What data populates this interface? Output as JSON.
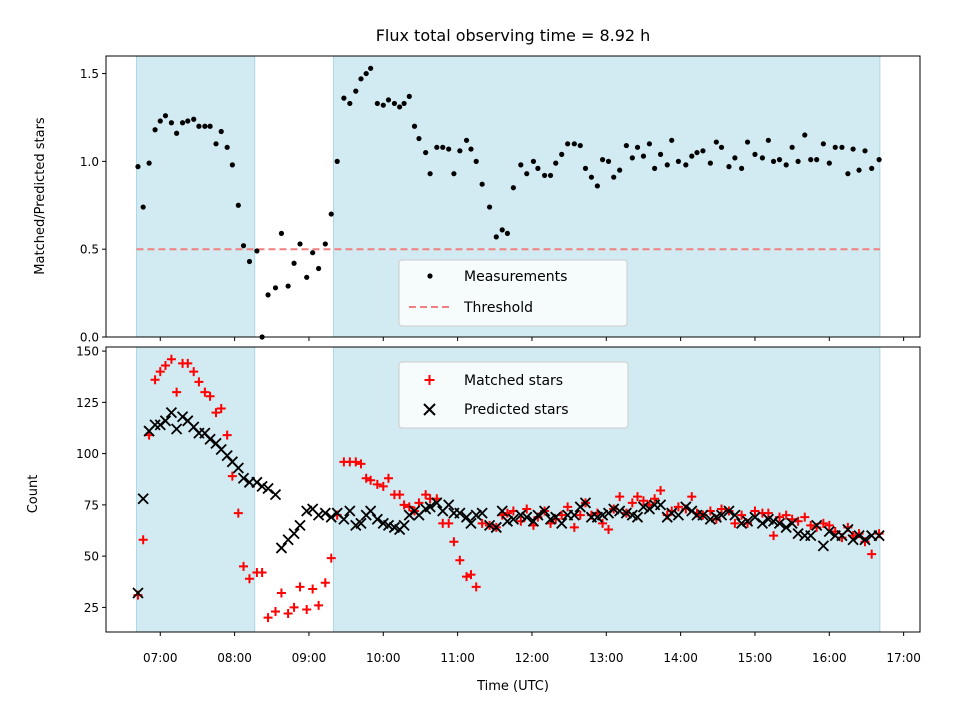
{
  "colors": {
    "band": "#add8e6",
    "measurement": "#000000",
    "threshold": "#f08080",
    "matched": "#ff0000",
    "predicted": "#000000"
  },
  "chart_data": [
    {
      "type": "scatter",
      "title": "Flux total observing time = 8.92 h",
      "xlabel": "",
      "ylabel": "Matched/Predicted stars",
      "xlim": [
        6.27,
        17.22
      ],
      "ylim": [
        0,
        1.6
      ],
      "yticks": [
        0.0,
        0.5,
        1.0,
        1.5
      ],
      "ytick_labels": [
        "0.0",
        "0.5",
        "1.0",
        "1.5"
      ],
      "shaded_ranges": [
        [
          6.68,
          8.27
        ],
        [
          9.33,
          16.68
        ]
      ],
      "threshold": 0.5,
      "legend": {
        "position": "lower center",
        "entries": [
          "Measurements",
          "Threshold"
        ]
      },
      "series": [
        {
          "name": "Measurements",
          "marker": "dot",
          "x": [
            6.7,
            6.77,
            6.85,
            6.93,
            7.0,
            7.07,
            7.15,
            7.22,
            7.3,
            7.37,
            7.45,
            7.52,
            7.6,
            7.67,
            7.75,
            7.82,
            7.9,
            7.97,
            8.05,
            8.12,
            8.2,
            8.3,
            8.37,
            8.45,
            8.55,
            8.63,
            8.72,
            8.8,
            8.88,
            8.97,
            9.05,
            9.13,
            9.22,
            9.3,
            9.38,
            9.47,
            9.55,
            9.63,
            9.7,
            9.77,
            9.83,
            9.92,
            10.0,
            10.07,
            10.15,
            10.22,
            10.28,
            10.35,
            10.42,
            10.48,
            10.57,
            10.63,
            10.72,
            10.8,
            10.88,
            10.95,
            11.03,
            11.12,
            11.18,
            11.25,
            11.33,
            11.43,
            11.52,
            11.6,
            11.67,
            11.75,
            11.85,
            11.93,
            12.02,
            12.08,
            12.17,
            12.25,
            12.32,
            12.4,
            12.48,
            12.57,
            12.65,
            12.72,
            12.8,
            12.88,
            12.95,
            13.03,
            13.1,
            13.18,
            13.27,
            13.35,
            13.42,
            13.5,
            13.58,
            13.65,
            13.73,
            13.82,
            13.88,
            13.97,
            14.07,
            14.15,
            14.22,
            14.3,
            14.4,
            14.48,
            14.55,
            14.65,
            14.73,
            14.82,
            14.9,
            15.0,
            15.1,
            15.18,
            15.25,
            15.33,
            15.42,
            15.5,
            15.58,
            15.67,
            15.75,
            15.83,
            15.92,
            16.0,
            16.08,
            16.17,
            16.25,
            16.32,
            16.4,
            16.48,
            16.57,
            16.67
          ],
          "y": [
            0.97,
            0.74,
            0.99,
            1.18,
            1.23,
            1.26,
            1.22,
            1.16,
            1.22,
            1.23,
            1.24,
            1.2,
            1.2,
            1.2,
            1.1,
            1.17,
            1.08,
            0.98,
            0.75,
            0.52,
            0.43,
            0.49,
            0.0,
            0.24,
            0.28,
            0.59,
            0.29,
            0.42,
            0.53,
            0.34,
            0.48,
            0.39,
            0.53,
            0.7,
            1.0,
            1.36,
            1.33,
            1.4,
            1.47,
            1.5,
            1.53,
            1.33,
            1.32,
            1.35,
            1.33,
            1.31,
            1.33,
            1.37,
            1.2,
            1.13,
            1.05,
            0.93,
            1.08,
            1.08,
            1.07,
            0.93,
            1.06,
            1.12,
            1.07,
            1.0,
            0.87,
            0.74,
            0.57,
            0.61,
            0.59,
            0.85,
            0.98,
            0.93,
            1.0,
            0.96,
            0.92,
            0.92,
            0.99,
            1.04,
            1.1,
            1.1,
            1.09,
            0.96,
            0.91,
            0.86,
            1.01,
            1.0,
            0.91,
            0.95,
            1.09,
            1.02,
            1.08,
            1.03,
            1.1,
            0.96,
            1.04,
            0.98,
            1.12,
            1.0,
            0.98,
            1.03,
            1.05,
            1.06,
            0.99,
            1.11,
            1.08,
            0.97,
            1.02,
            0.96,
            1.11,
            1.04,
            1.02,
            1.12,
            1.0,
            1.01,
            0.98,
            1.08,
            1.0,
            1.15,
            1.01,
            1.01,
            1.1,
            0.99,
            1.08,
            1.08,
            0.93,
            1.07,
            0.95,
            1.06,
            0.96,
            1.01
          ]
        },
        {
          "name": "Threshold",
          "style": "dashed",
          "x": [
            6.68,
            16.68
          ],
          "y": [
            0.5,
            0.5
          ]
        }
      ]
    },
    {
      "type": "scatter",
      "title": "",
      "xlabel": "Time (UTC)",
      "ylabel": "Count",
      "xlim": [
        6.27,
        17.22
      ],
      "ylim": [
        13,
        152
      ],
      "yticks": [
        25,
        50,
        75,
        100,
        125,
        150
      ],
      "ytick_labels": [
        "25",
        "50",
        "75",
        "100",
        "125",
        "150"
      ],
      "xticks": [
        7,
        8,
        9,
        10,
        11,
        12,
        13,
        14,
        15,
        16,
        17
      ],
      "xtick_labels": [
        "07:00",
        "08:00",
        "09:00",
        "10:00",
        "11:00",
        "12:00",
        "13:00",
        "14:00",
        "15:00",
        "16:00",
        "17:00"
      ],
      "shaded_ranges": [
        [
          6.68,
          8.27
        ],
        [
          9.33,
          16.68
        ]
      ],
      "legend": {
        "position": "upper center",
        "entries": [
          "Matched stars",
          "Predicted stars"
        ]
      },
      "series": [
        {
          "name": "Matched stars",
          "marker": "plus",
          "x": [
            6.7,
            6.77,
            6.85,
            6.93,
            7.0,
            7.07,
            7.15,
            7.22,
            7.3,
            7.37,
            7.45,
            7.52,
            7.6,
            7.67,
            7.75,
            7.82,
            7.9,
            7.97,
            8.05,
            8.12,
            8.2,
            8.3,
            8.37,
            8.45,
            8.55,
            8.63,
            8.72,
            8.8,
            8.88,
            8.97,
            9.05,
            9.13,
            9.22,
            9.3,
            9.38,
            9.47,
            9.55,
            9.63,
            9.7,
            9.77,
            9.83,
            9.92,
            10.0,
            10.07,
            10.15,
            10.22,
            10.28,
            10.35,
            10.42,
            10.48,
            10.57,
            10.63,
            10.72,
            10.8,
            10.88,
            10.95,
            11.03,
            11.12,
            11.18,
            11.25,
            11.33,
            11.43,
            11.52,
            11.6,
            11.67,
            11.75,
            11.85,
            11.93,
            12.02,
            12.08,
            12.17,
            12.25,
            12.32,
            12.4,
            12.48,
            12.57,
            12.65,
            12.72,
            12.8,
            12.88,
            12.95,
            13.03,
            13.1,
            13.18,
            13.27,
            13.35,
            13.42,
            13.5,
            13.58,
            13.65,
            13.73,
            13.82,
            13.88,
            13.97,
            14.07,
            14.15,
            14.22,
            14.3,
            14.4,
            14.48,
            14.55,
            14.65,
            14.73,
            14.82,
            14.9,
            15.0,
            15.1,
            15.18,
            15.25,
            15.33,
            15.42,
            15.5,
            15.58,
            15.67,
            15.75,
            15.83,
            15.92,
            16.0,
            16.08,
            16.17,
            16.25,
            16.32,
            16.4,
            16.48,
            16.57,
            16.67
          ],
          "y": [
            31,
            58,
            109,
            136,
            140,
            143,
            146,
            130,
            144,
            144,
            140,
            135,
            130,
            128,
            120,
            122,
            109,
            89,
            71,
            45,
            39,
            42,
            42,
            20,
            23,
            32,
            22,
            25,
            35,
            24,
            34,
            26,
            37,
            49,
            70,
            96,
            96,
            96,
            95,
            88,
            87,
            85,
            84,
            88,
            80,
            80,
            75,
            74,
            72,
            76,
            80,
            78,
            78,
            66,
            66,
            57,
            48,
            40,
            41,
            35,
            66,
            65,
            64,
            70,
            71,
            72,
            67,
            73,
            65,
            69,
            72,
            66,
            68,
            70,
            74,
            64,
            70,
            76,
            70,
            71,
            66,
            63,
            73,
            79,
            71,
            76,
            79,
            77,
            75,
            78,
            82,
            70,
            72,
            74,
            73,
            79,
            71,
            70,
            72,
            68,
            73,
            72,
            66,
            70,
            66,
            72,
            71,
            71,
            60,
            69,
            70,
            68,
            67,
            69,
            65,
            64,
            66,
            65,
            62,
            59,
            64,
            60,
            61,
            57,
            51,
            61
          ]
        },
        {
          "name": "Predicted stars",
          "marker": "x",
          "x": [
            6.7,
            6.77,
            6.85,
            6.93,
            7.0,
            7.07,
            7.15,
            7.22,
            7.3,
            7.37,
            7.45,
            7.52,
            7.6,
            7.67,
            7.75,
            7.82,
            7.9,
            7.97,
            8.05,
            8.12,
            8.2,
            8.3,
            8.37,
            8.45,
            8.55,
            8.63,
            8.72,
            8.8,
            8.88,
            8.97,
            9.05,
            9.13,
            9.22,
            9.3,
            9.38,
            9.47,
            9.55,
            9.63,
            9.7,
            9.77,
            9.83,
            9.92,
            10.0,
            10.07,
            10.15,
            10.22,
            10.28,
            10.35,
            10.42,
            10.48,
            10.57,
            10.63,
            10.72,
            10.8,
            10.88,
            10.95,
            11.03,
            11.12,
            11.18,
            11.25,
            11.33,
            11.43,
            11.52,
            11.6,
            11.67,
            11.75,
            11.85,
            11.93,
            12.02,
            12.08,
            12.17,
            12.25,
            12.32,
            12.4,
            12.48,
            12.57,
            12.65,
            12.72,
            12.8,
            12.88,
            12.95,
            13.03,
            13.1,
            13.18,
            13.27,
            13.35,
            13.42,
            13.5,
            13.58,
            13.65,
            13.73,
            13.82,
            13.88,
            13.97,
            14.07,
            14.15,
            14.22,
            14.3,
            14.4,
            14.48,
            14.55,
            14.65,
            14.73,
            14.82,
            14.9,
            15.0,
            15.1,
            15.18,
            15.25,
            15.33,
            15.42,
            15.5,
            15.58,
            15.67,
            15.75,
            15.83,
            15.92,
            16.0,
            16.08,
            16.17,
            16.25,
            16.32,
            16.4,
            16.48,
            16.57,
            16.67
          ],
          "y": [
            32,
            78,
            111,
            114,
            114,
            116,
            120,
            112,
            118,
            116,
            113,
            110,
            110,
            107,
            105,
            102,
            99,
            96,
            93,
            88,
            86,
            86,
            84,
            83,
            80,
            54,
            58,
            61,
            65,
            72,
            73,
            70,
            71,
            69,
            71,
            68,
            72,
            65,
            66,
            70,
            72,
            68,
            66,
            65,
            64,
            63,
            65,
            70,
            72,
            70,
            73,
            74,
            76,
            72,
            75,
            71,
            71,
            69,
            66,
            70,
            71,
            65,
            64,
            72,
            67,
            68,
            70,
            69,
            67,
            70,
            72,
            68,
            69,
            66,
            70,
            70,
            74,
            76,
            69,
            69,
            70,
            71,
            73,
            72,
            71,
            70,
            69,
            74,
            73,
            75,
            75,
            69,
            71,
            70,
            74,
            72,
            70,
            70,
            68,
            69,
            70,
            72,
            70,
            66,
            67,
            69,
            66,
            68,
            67,
            66,
            64,
            66,
            61,
            60,
            60,
            65,
            55,
            62,
            60,
            60,
            63,
            58,
            60,
            58,
            60,
            60
          ]
        }
      ]
    }
  ]
}
